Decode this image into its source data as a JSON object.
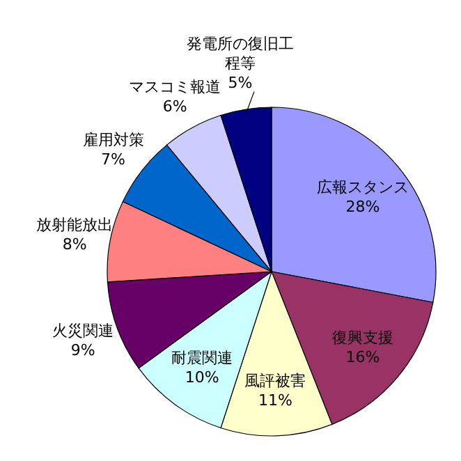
{
  "chart_data": {
    "type": "pie",
    "categories": [
      "広報スタンス",
      "復興支援",
      "風評被害",
      "耐震関連",
      "火災関連",
      "放射能放出",
      "雇用対策",
      "マスコミ報道",
      "発電所の復旧工程等"
    ],
    "values": [
      28,
      16,
      11,
      10,
      9,
      8,
      7,
      6,
      5
    ],
    "value_labels": [
      "28%",
      "16%",
      "11%",
      "10%",
      "9%",
      "8%",
      "7%",
      "6%",
      "5%"
    ],
    "colors": [
      "#9999ff",
      "#993366",
      "#ffffcc",
      "#ccffff",
      "#660066",
      "#ff8080",
      "#0066cc",
      "#ccccff",
      "#000080"
    ]
  }
}
